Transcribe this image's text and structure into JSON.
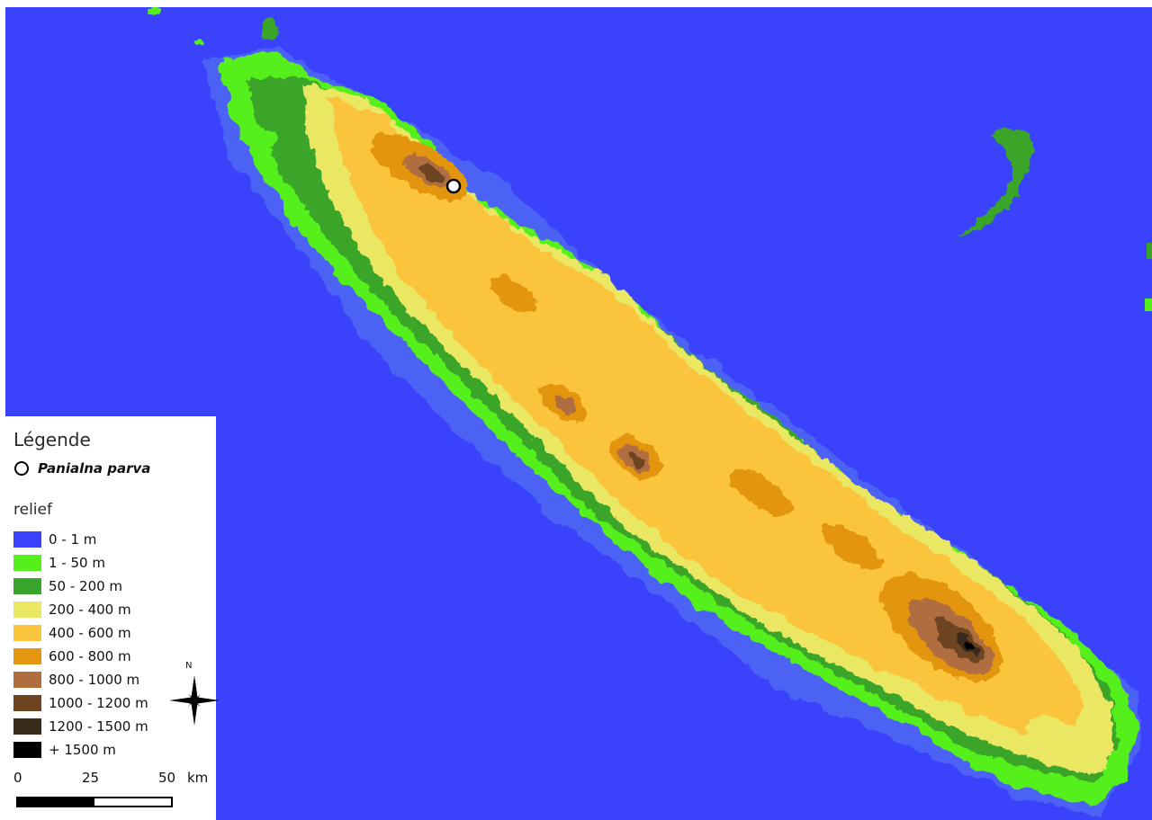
{
  "legend": {
    "title": "Légende",
    "point_layer": {
      "label": "Panialna parva",
      "symbol": "hollow-circle-icon"
    },
    "raster_layer": {
      "title": "relief",
      "classes": [
        {
          "label": "0 - 1 m",
          "color": "#3a43fb"
        },
        {
          "label": "1 - 50 m",
          "color": "#55f01c"
        },
        {
          "label": "50 - 200 m",
          "color": "#3aa52c"
        },
        {
          "label": "200 - 400 m",
          "color": "#eae763"
        },
        {
          "label": "400 - 600 m",
          "color": "#fbc43d"
        },
        {
          "label": "600 - 800 m",
          "color": "#e3960f"
        },
        {
          "label": "800 - 1000 m",
          "color": "#b06e3f"
        },
        {
          "label": "1000 - 1200 m",
          "color": "#6e4420"
        },
        {
          "label": "1200 - 1500 m",
          "color": "#3a2a1a"
        },
        {
          "label": "+ 1500 m",
          "color": "#000000"
        }
      ]
    }
  },
  "north_arrow": {
    "label": "N"
  },
  "scale_bar": {
    "labels": [
      "0",
      "25",
      "50"
    ],
    "unit": "km"
  },
  "map": {
    "sea_color": "#3a43fb",
    "feature": {
      "name": "Panialna parva",
      "marker": "hollow-circle-icon"
    }
  }
}
